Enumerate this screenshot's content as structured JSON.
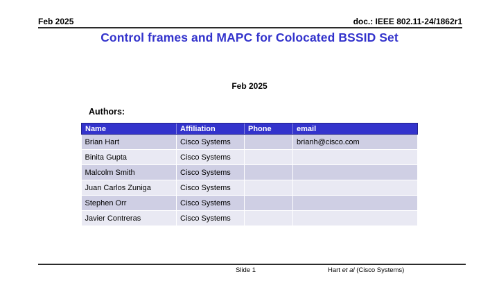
{
  "header": {
    "left_text": "Feb 2025",
    "right_text": "doc.: IEEE 802.11-24/1862r1"
  },
  "title": "Control frames and MAPC for Colocated BSSID Set",
  "body": {
    "date_text": "Feb 2025",
    "authors_label": "Authors:"
  },
  "authors_table": {
    "headers": [
      "Name",
      "Affiliation",
      "Phone",
      "email"
    ],
    "rows": [
      [
        "Brian Hart",
        "Cisco Systems",
        "",
        "brianh@cisco.com"
      ],
      [
        "Binita Gupta",
        "Cisco Systems",
        "",
        ""
      ],
      [
        "Malcolm Smith",
        "Cisco Systems",
        "",
        ""
      ],
      [
        "Juan Carlos Zuniga",
        "Cisco Systems",
        "",
        ""
      ],
      [
        "Stephen Orr",
        "Cisco Systems",
        "",
        ""
      ],
      [
        "Javier Contreras",
        "Cisco Systems",
        "",
        ""
      ]
    ]
  },
  "footer": {
    "slide_label": "Slide 1",
    "credit_prefix": "Hart ",
    "credit_italic": "et al",
    "credit_suffix": " (Cisco Systems)"
  },
  "colors": {
    "accent_blue": "#3333cc",
    "table_header_bg": "#3333cc",
    "table_header_border": "#23238f",
    "table_header_separator": "#8585e0",
    "row_odd": "#cfcfe4",
    "row_even": "#e9e9f3",
    "rule": "#2b2b2b"
  }
}
